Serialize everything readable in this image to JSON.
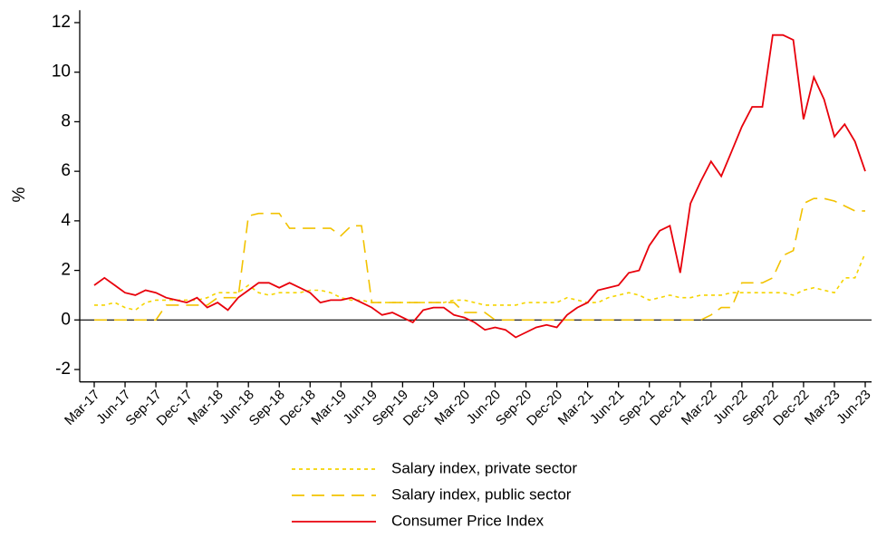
{
  "chart_data": {
    "type": "line",
    "y_label": "%",
    "categories": [
      "Mar-17",
      null,
      null,
      "Jun-17",
      null,
      null,
      "Sep-17",
      null,
      null,
      "Dec-17",
      null,
      null,
      "Mar-18",
      null,
      null,
      "Jun-18",
      null,
      null,
      "Sep-18",
      null,
      null,
      "Dec-18",
      null,
      null,
      "Mar-19",
      null,
      null,
      "Jun-19",
      null,
      null,
      "Sep-19",
      null,
      null,
      "Dec-19",
      null,
      null,
      "Mar-20",
      null,
      null,
      "Jun-20",
      null,
      null,
      "Sep-20",
      null,
      null,
      "Dec-20",
      null,
      null,
      "Mar-21",
      null,
      null,
      "Jun-21",
      null,
      null,
      "Sep-21",
      null,
      null,
      "Dec-21",
      null,
      null,
      "Mar-22",
      null,
      null,
      "Jun-22",
      null,
      null,
      "Sep-22",
      null,
      null,
      "Dec-22",
      null,
      null,
      "Mar-23",
      null,
      null,
      "Jun-23"
    ],
    "ylim": [
      -2.5,
      12.5
    ],
    "yticks": [
      -2,
      0,
      2,
      4,
      6,
      8,
      10,
      12
    ],
    "series": [
      {
        "name": "Salary index, private sector",
        "color": "#f5d400",
        "line_style": "dotted",
        "values": [
          0.6,
          0.6,
          0.7,
          0.5,
          0.4,
          0.7,
          0.8,
          0.8,
          0.8,
          0.8,
          0.8,
          0.9,
          1.1,
          1.1,
          1.1,
          1.4,
          1.1,
          1.0,
          1.1,
          1.1,
          1.1,
          1.2,
          1.2,
          1.1,
          0.9,
          0.8,
          0.8,
          0.7,
          0.7,
          0.7,
          0.7,
          0.7,
          0.7,
          0.7,
          0.7,
          0.8,
          0.8,
          0.7,
          0.6,
          0.6,
          0.6,
          0.6,
          0.7,
          0.7,
          0.7,
          0.7,
          0.9,
          0.8,
          0.7,
          0.7,
          0.9,
          1.0,
          1.1,
          1.0,
          0.8,
          0.9,
          1.0,
          0.9,
          0.9,
          1.0,
          1.0,
          1.0,
          1.1,
          1.1,
          1.1,
          1.1,
          1.1,
          1.1,
          1.0,
          1.2,
          1.3,
          1.2,
          1.1,
          1.7,
          1.7,
          2.7
        ]
      },
      {
        "name": "Salary index, public sector",
        "color": "#f2c200",
        "line_style": "dashed",
        "values": [
          0,
          0,
          0,
          0,
          0,
          0,
          0,
          0.6,
          0.6,
          0.6,
          0.6,
          0.6,
          0.9,
          0.9,
          0.9,
          4.2,
          4.3,
          4.3,
          4.3,
          3.7,
          3.7,
          3.7,
          3.7,
          3.7,
          3.4,
          3.8,
          3.8,
          0.7,
          0.7,
          0.7,
          0.7,
          0.7,
          0.7,
          0.7,
          0.7,
          0.7,
          0.3,
          0.3,
          0.3,
          0,
          0,
          0,
          0,
          0,
          0,
          0,
          0,
          0,
          0,
          0,
          0,
          0,
          0,
          0,
          0,
          0,
          0,
          0,
          0,
          0,
          0.2,
          0.5,
          0.5,
          1.5,
          1.5,
          1.5,
          1.7,
          2.6,
          2.8,
          4.7,
          4.9,
          4.9,
          4.8,
          4.6,
          4.4,
          4.4
        ]
      },
      {
        "name": "Consumer Price Index",
        "color": "#e8000b",
        "line_style": "solid",
        "values": [
          1.4,
          1.7,
          1.4,
          1.1,
          1.0,
          1.2,
          1.1,
          0.9,
          0.8,
          0.7,
          0.9,
          0.5,
          0.7,
          0.4,
          0.9,
          1.2,
          1.5,
          1.5,
          1.3,
          1.5,
          1.3,
          1.1,
          0.7,
          0.8,
          0.8,
          0.9,
          0.7,
          0.5,
          0.2,
          0.3,
          0.1,
          -0.1,
          0.4,
          0.5,
          0.5,
          0.2,
          0.1,
          -0.1,
          -0.4,
          -0.3,
          -0.4,
          -0.7,
          -0.5,
          -0.3,
          -0.2,
          -0.3,
          0.2,
          0.5,
          0.7,
          1.2,
          1.3,
          1.4,
          1.9,
          2.0,
          3.0,
          3.6,
          3.8,
          1.9,
          4.7,
          5.6,
          6.4,
          5.8,
          6.8,
          7.8,
          8.6,
          8.6,
          11.5,
          11.5,
          11.3,
          8.1,
          9.8,
          8.9,
          7.4,
          7.9,
          7.2,
          6.0
        ]
      }
    ]
  }
}
